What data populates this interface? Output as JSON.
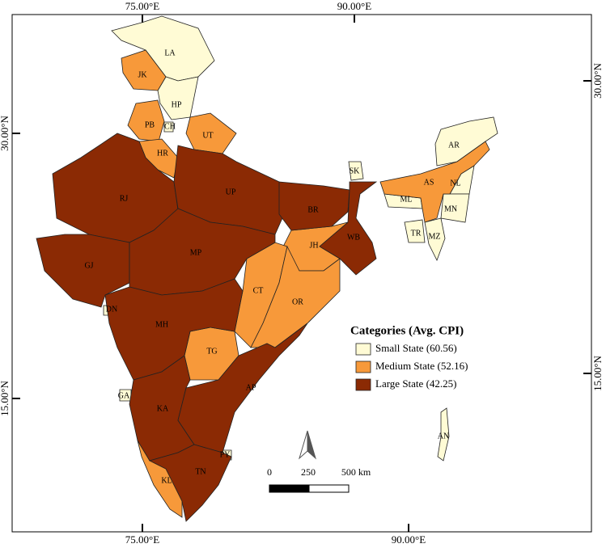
{
  "map": {
    "graticule": {
      "top": [
        "75.00°E",
        "90.00°E"
      ],
      "bottom": [
        "75.00°E",
        "90.00°E"
      ],
      "left": [
        "30.00°N",
        "15.00°N"
      ],
      "right": [
        "30.00°N",
        "15.00°N"
      ]
    },
    "legend": {
      "title": "Categories (Avg. CPI)",
      "items": [
        {
          "label": "Small State (60.56)",
          "color": "#fffbd5",
          "states": [
            "LA",
            "HP",
            "CH",
            "SK",
            "AR",
            "NL",
            "ML",
            "MN",
            "TR",
            "MZ",
            "AN",
            "GA",
            "PY",
            "DN"
          ]
        },
        {
          "label": "Medium State (52.16)",
          "color": "#f7993a",
          "states": [
            "JK",
            "PB",
            "HR",
            "UT",
            "AS",
            "JH",
            "CT",
            "OR",
            "TG",
            "KL"
          ]
        },
        {
          "label": "Large State (42.25)",
          "color": "#8b2a04",
          "states": [
            "RJ",
            "UP",
            "BR",
            "WB",
            "GJ",
            "MP",
            "MH",
            "KA",
            "AP",
            "TN"
          ]
        }
      ]
    },
    "scale_bar": {
      "labels": [
        "0",
        "250",
        "500 km"
      ]
    }
  }
}
